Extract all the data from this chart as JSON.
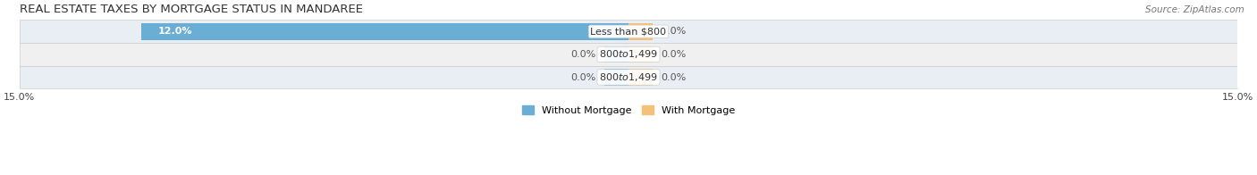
{
  "title": "REAL ESTATE TAXES BY MORTGAGE STATUS IN MANDAREE",
  "source": "Source: ZipAtlas.com",
  "rows": [
    {
      "label": "Less than $800",
      "without_mortgage": 12.0,
      "with_mortgage": 0.0
    },
    {
      "label": "$800 to $1,499",
      "without_mortgage": 0.0,
      "with_mortgage": 0.0
    },
    {
      "label": "$800 to $1,499",
      "without_mortgage": 0.0,
      "with_mortgage": 0.0
    }
  ],
  "xlim": [
    -15.0,
    15.0
  ],
  "without_mortgage_color": "#6aaed6",
  "with_mortgage_color": "#f5c07a",
  "bar_height": 0.72,
  "row_bg_even": "#e8eef3",
  "row_bg_odd": "#f0f0f0",
  "row_border_color": "#cccccc",
  "label_fontsize": 8,
  "title_fontsize": 9.5,
  "source_fontsize": 7.5,
  "legend_fontsize": 8,
  "tick_fontsize": 8,
  "zero_bar_stub": 0.6
}
